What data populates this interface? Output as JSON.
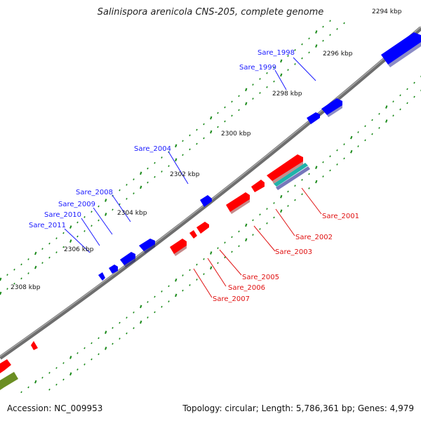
{
  "title": "Salinispora arenicola CNS-205, complete genome",
  "footer": {
    "accession": "Accession: NC_009953",
    "summary": "Topology: circular; Length: 5,786,361 bp; Genes: 4,979"
  },
  "ticks": [
    "2294 kbp",
    "2296 kbp",
    "2298 kbp",
    "2300 kbp",
    "2302 kbp",
    "2304 kbp",
    "2306 kbp",
    "2308 kbp"
  ],
  "genes_forward": [
    "Sare_1998",
    "Sare_1999",
    "Sare_2004",
    "Sare_2008",
    "Sare_2009",
    "Sare_2010",
    "Sare_2011"
  ],
  "genes_reverse": [
    "Sare_2001",
    "Sare_2002",
    "Sare_2003",
    "Sare_2005",
    "Sare_2006",
    "Sare_2007"
  ],
  "colors": {
    "backbone": "#808080",
    "forward_gene": "#0000ff",
    "reverse_gene": "#ff0000",
    "tick_minor": "#1a8a1a",
    "rna_teal": "#20b2aa",
    "rna_purple": "#8080c0",
    "other_feature": "#6b8e23"
  }
}
